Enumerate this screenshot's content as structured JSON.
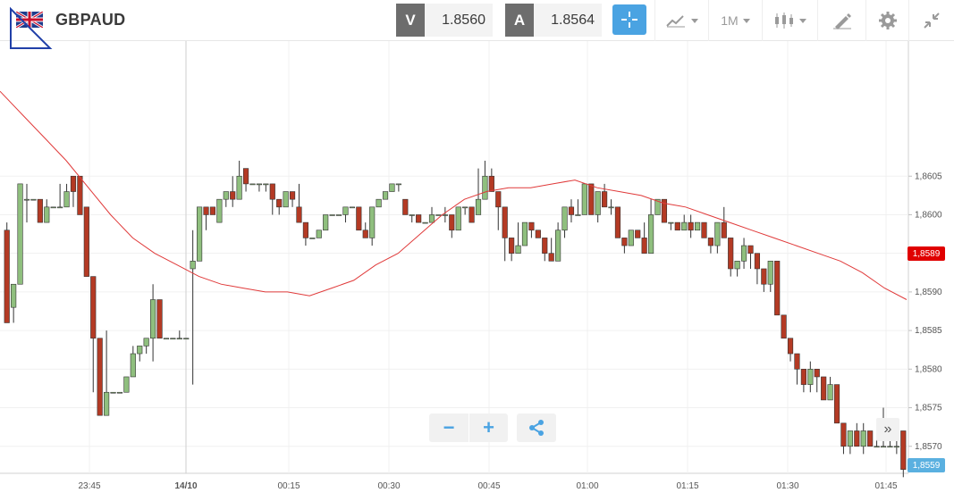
{
  "header": {
    "symbol": "GBPAUD",
    "flag_icon": "gb-au-flag-icon",
    "sell": {
      "tag": "V",
      "price": "1.8560"
    },
    "buy": {
      "tag": "A",
      "price": "1.8564"
    },
    "timeframe": "1M",
    "colors": {
      "accent": "#4aa3e2",
      "tag_bg": "#6d6d6d"
    }
  },
  "chart_data": {
    "type": "candlestick",
    "price_axis": [
      "1,8605",
      "1,8600",
      "1,8595",
      "1,8590",
      "1,8585",
      "1,8580",
      "1,8575",
      "1,8570"
    ],
    "ylim": [
      1.85665,
      1.86225
    ],
    "time_axis": [
      "23:45",
      "14/10",
      "00:15",
      "00:30",
      "00:45",
      "01:00",
      "01:15",
      "01:30",
      "01:45"
    ],
    "moving_average_label": "1,8589",
    "last_price_label": "1,8559",
    "up_color": "#8fbf7e",
    "down_color": "#b43a24",
    "ma_color": "#e03a3a",
    "candles": [
      [
        1.8598,
        1.8586,
        1.8599,
        1.8586
      ],
      [
        1.8588,
        1.8591,
        1.8591,
        1.8586
      ],
      [
        1.8591,
        1.8604,
        1.8604,
        1.8591
      ],
      [
        1.8602,
        1.8602,
        1.8604,
        1.8599
      ],
      [
        1.8602,
        1.8602,
        1.8602,
        1.8602
      ],
      [
        1.8602,
        1.8599,
        1.8602,
        1.8599
      ],
      [
        1.8599,
        1.8601,
        1.8602,
        1.8599
      ],
      [
        1.8601,
        1.8601,
        1.8601,
        1.8601
      ],
      [
        1.8601,
        1.8601,
        1.8604,
        1.8601
      ],
      [
        1.8601,
        1.8603,
        1.8604,
        1.8601
      ],
      [
        1.8605,
        1.8603,
        1.8605,
        1.8601
      ],
      [
        1.8605,
        1.86,
        1.8605,
        1.86
      ],
      [
        1.8601,
        1.8592,
        1.8601,
        1.8592
      ],
      [
        1.8592,
        1.8584,
        1.8592,
        1.8577
      ],
      [
        1.8584,
        1.8574,
        1.8584,
        1.8574
      ],
      [
        1.8574,
        1.8577,
        1.8585,
        1.8574
      ],
      [
        1.8577,
        1.8577,
        1.8577,
        1.8577
      ],
      [
        1.8577,
        1.8577,
        1.8577,
        1.8577
      ],
      [
        1.8577,
        1.8579,
        1.8579,
        1.8577
      ],
      [
        1.8579,
        1.8582,
        1.8583,
        1.8579
      ],
      [
        1.8582,
        1.8583,
        1.8583,
        1.8581
      ],
      [
        1.8583,
        1.8584,
        1.8584,
        1.8582
      ],
      [
        1.8584,
        1.8589,
        1.8591,
        1.8581
      ],
      [
        1.8589,
        1.8584,
        1.8589,
        1.8584
      ],
      [
        1.8584,
        1.8584,
        1.8584,
        1.8584
      ],
      [
        1.8584,
        1.8584,
        1.8584,
        1.8584
      ],
      [
        1.8584,
        1.8584,
        1.8585,
        1.8584
      ],
      [
        1.8584,
        1.8584,
        1.8584,
        1.8584
      ],
      [
        1.8593,
        1.8594,
        1.8598,
        1.8578
      ],
      [
        1.8594,
        1.8601,
        1.8601,
        1.8594
      ],
      [
        1.8601,
        1.86,
        1.8601,
        1.8598
      ],
      [
        1.8601,
        1.86,
        1.8601,
        1.86
      ],
      [
        1.8599,
        1.8602,
        1.8602,
        1.8599
      ],
      [
        1.8602,
        1.8603,
        1.8603,
        1.8601
      ],
      [
        1.8603,
        1.8602,
        1.8605,
        1.8601
      ],
      [
        1.8602,
        1.8605,
        1.8607,
        1.8602
      ],
      [
        1.8606,
        1.8604,
        1.8606,
        1.8603
      ],
      [
        1.8604,
        1.8604,
        1.8604,
        1.8604
      ],
      [
        1.8604,
        1.8604,
        1.8604,
        1.8603
      ],
      [
        1.8604,
        1.8604,
        1.8604,
        1.8603
      ],
      [
        1.8604,
        1.8602,
        1.8604,
        1.86
      ],
      [
        1.8602,
        1.8601,
        1.8602,
        1.86
      ],
      [
        1.8601,
        1.8603,
        1.8603,
        1.8601
      ],
      [
        1.8603,
        1.8602,
        1.8603,
        1.8601
      ],
      [
        1.8601,
        1.8599,
        1.8604,
        1.8599
      ],
      [
        1.8599,
        1.8597,
        1.8599,
        1.8596
      ],
      [
        1.8597,
        1.8597,
        1.8597,
        1.8597
      ],
      [
        1.8597,
        1.8598,
        1.8598,
        1.8597
      ],
      [
        1.8598,
        1.86,
        1.86,
        1.8598
      ],
      [
        1.86,
        1.86,
        1.86,
        1.86
      ],
      [
        1.86,
        1.86,
        1.86,
        1.86
      ],
      [
        1.86,
        1.8601,
        1.8601,
        1.8599
      ],
      [
        1.8601,
        1.8601,
        1.8601,
        1.8601
      ],
      [
        1.8601,
        1.8598,
        1.8601,
        1.8598
      ],
      [
        1.8598,
        1.8597,
        1.8599,
        1.8597
      ],
      [
        1.8597,
        1.8601,
        1.8601,
        1.8596
      ],
      [
        1.8601,
        1.8602,
        1.8602,
        1.8601
      ],
      [
        1.8602,
        1.8603,
        1.8603,
        1.8602
      ],
      [
        1.8603,
        1.8604,
        1.8604,
        1.8603
      ],
      [
        1.8604,
        1.8604,
        1.8604,
        1.8603
      ],
      [
        1.8602,
        1.86,
        1.8602,
        1.86
      ],
      [
        1.86,
        1.86,
        1.86,
        1.8599
      ],
      [
        1.86,
        1.8599,
        1.86,
        1.8599
      ],
      [
        1.8599,
        1.8599,
        1.8599,
        1.8599
      ],
      [
        1.8599,
        1.86,
        1.8601,
        1.8599
      ],
      [
        1.86,
        1.86,
        1.86,
        1.86
      ],
      [
        1.86,
        1.86,
        1.8601,
        1.8599
      ],
      [
        1.86,
        1.8598,
        1.86,
        1.8597
      ],
      [
        1.8598,
        1.8601,
        1.8601,
        1.8598
      ],
      [
        1.8601,
        1.8601,
        1.8601,
        1.86
      ],
      [
        1.8601,
        1.8599,
        1.8601,
        1.8599
      ],
      [
        1.86,
        1.8602,
        1.8606,
        1.86
      ],
      [
        1.8602,
        1.8605,
        1.8607,
        1.8602
      ],
      [
        1.8605,
        1.8603,
        1.8606,
        1.8603
      ],
      [
        1.8603,
        1.8601,
        1.8603,
        1.8598
      ],
      [
        1.8601,
        1.8597,
        1.8601,
        1.8594
      ],
      [
        1.8597,
        1.8595,
        1.8597,
        1.8594
      ],
      [
        1.8595,
        1.8596,
        1.8599,
        1.8595
      ],
      [
        1.8596,
        1.8599,
        1.8599,
        1.8596
      ],
      [
        1.8599,
        1.8598,
        1.8599,
        1.8597
      ],
      [
        1.8598,
        1.8597,
        1.8598,
        1.8597
      ],
      [
        1.8597,
        1.8595,
        1.8597,
        1.8594
      ],
      [
        1.8595,
        1.8594,
        1.8597,
        1.8594
      ],
      [
        1.8594,
        1.8598,
        1.8599,
        1.8594
      ],
      [
        1.8598,
        1.8601,
        1.8601,
        1.8597
      ],
      [
        1.8601,
        1.86,
        1.8602,
        1.8599
      ],
      [
        1.86,
        1.86,
        1.8602,
        1.86
      ],
      [
        1.86,
        1.8604,
        1.8604,
        1.86
      ],
      [
        1.8604,
        1.86,
        1.8604,
        1.86
      ],
      [
        1.86,
        1.8603,
        1.8603,
        1.8599
      ],
      [
        1.8603,
        1.8601,
        1.8604,
        1.8601
      ],
      [
        1.8601,
        1.8601,
        1.8602,
        1.86
      ],
      [
        1.8601,
        1.8597,
        1.8601,
        1.8597
      ],
      [
        1.8597,
        1.8596,
        1.8597,
        1.8595
      ],
      [
        1.8596,
        1.8598,
        1.8598,
        1.8596
      ],
      [
        1.8598,
        1.8597,
        1.8598,
        1.8597
      ],
      [
        1.8597,
        1.8595,
        1.8599,
        1.8595
      ],
      [
        1.8595,
        1.86,
        1.8602,
        1.8595
      ],
      [
        1.86,
        1.8602,
        1.8602,
        1.86
      ],
      [
        1.8602,
        1.8599,
        1.8602,
        1.8599
      ],
      [
        1.8599,
        1.8599,
        1.8599,
        1.8598
      ],
      [
        1.8599,
        1.8598,
        1.8599,
        1.8598
      ],
      [
        1.8598,
        1.8599,
        1.86,
        1.8598
      ],
      [
        1.8599,
        1.8598,
        1.86,
        1.8597
      ],
      [
        1.8598,
        1.8599,
        1.8599,
        1.8598
      ],
      [
        1.8599,
        1.8597,
        1.8599,
        1.8597
      ],
      [
        1.8597,
        1.8596,
        1.8597,
        1.8595
      ],
      [
        1.8596,
        1.8599,
        1.8599,
        1.8595
      ],
      [
        1.8599,
        1.8597,
        1.8601,
        1.8597
      ],
      [
        1.8597,
        1.8593,
        1.8597,
        1.8592
      ],
      [
        1.8593,
        1.8594,
        1.8594,
        1.8592
      ],
      [
        1.8594,
        1.8596,
        1.8597,
        1.8593
      ],
      [
        1.8596,
        1.8595,
        1.8596,
        1.8593
      ],
      [
        1.8595,
        1.8593,
        1.8595,
        1.8591
      ],
      [
        1.8593,
        1.8591,
        1.8593,
        1.859
      ],
      [
        1.8591,
        1.8594,
        1.8594,
        1.859
      ],
      [
        1.8594,
        1.8587,
        1.8594,
        1.8587
      ],
      [
        1.8587,
        1.8584,
        1.8587,
        1.8584
      ],
      [
        1.8584,
        1.8582,
        1.8584,
        1.8581
      ],
      [
        1.8582,
        1.858,
        1.8582,
        1.8578
      ],
      [
        1.858,
        1.8578,
        1.858,
        1.8577
      ],
      [
        1.8578,
        1.858,
        1.8581,
        1.8577
      ],
      [
        1.858,
        1.8579,
        1.858,
        1.8577
      ],
      [
        1.8579,
        1.8576,
        1.8579,
        1.8576
      ],
      [
        1.8576,
        1.8578,
        1.8579,
        1.8576
      ],
      [
        1.8578,
        1.8573,
        1.8578,
        1.8573
      ],
      [
        1.8573,
        1.857,
        1.8573,
        1.8569
      ],
      [
        1.857,
        1.8572,
        1.8572,
        1.8569
      ],
      [
        1.8572,
        1.857,
        1.8573,
        1.857
      ],
      [
        1.857,
        1.8572,
        1.8573,
        1.8569
      ],
      [
        1.8572,
        1.857,
        1.8572,
        1.857
      ],
      [
        1.857,
        1.857,
        1.8573,
        1.857
      ],
      [
        1.857,
        1.857,
        1.8575,
        1.857
      ],
      [
        1.857,
        1.857,
        1.8573,
        1.857
      ],
      [
        1.857,
        1.857,
        1.8573,
        1.8569
      ],
      [
        1.8572,
        1.8567,
        1.8572,
        1.8566
      ]
    ],
    "moving_average": [
      1.8616,
      1.8613,
      1.861,
      1.8607,
      1.86035,
      1.86,
      1.8597,
      1.8595,
      1.85935,
      1.8592,
      1.8591,
      1.85905,
      1.859,
      1.859,
      1.85895,
      1.85905,
      1.85915,
      1.85935,
      1.8595,
      1.85975,
      1.86,
      1.8602,
      1.8603,
      1.86035,
      1.86035,
      1.8604,
      1.86045,
      1.86035,
      1.8603,
      1.86025,
      1.86015,
      1.8601,
      1.86,
      1.8599,
      1.8598,
      1.8597,
      1.8596,
      1.8595,
      1.8594,
      1.85925,
      1.85905,
      1.8589
    ]
  },
  "controls": {
    "zoom_out_label": "−",
    "zoom_in_label": "+",
    "scroll_end_label": "»"
  }
}
